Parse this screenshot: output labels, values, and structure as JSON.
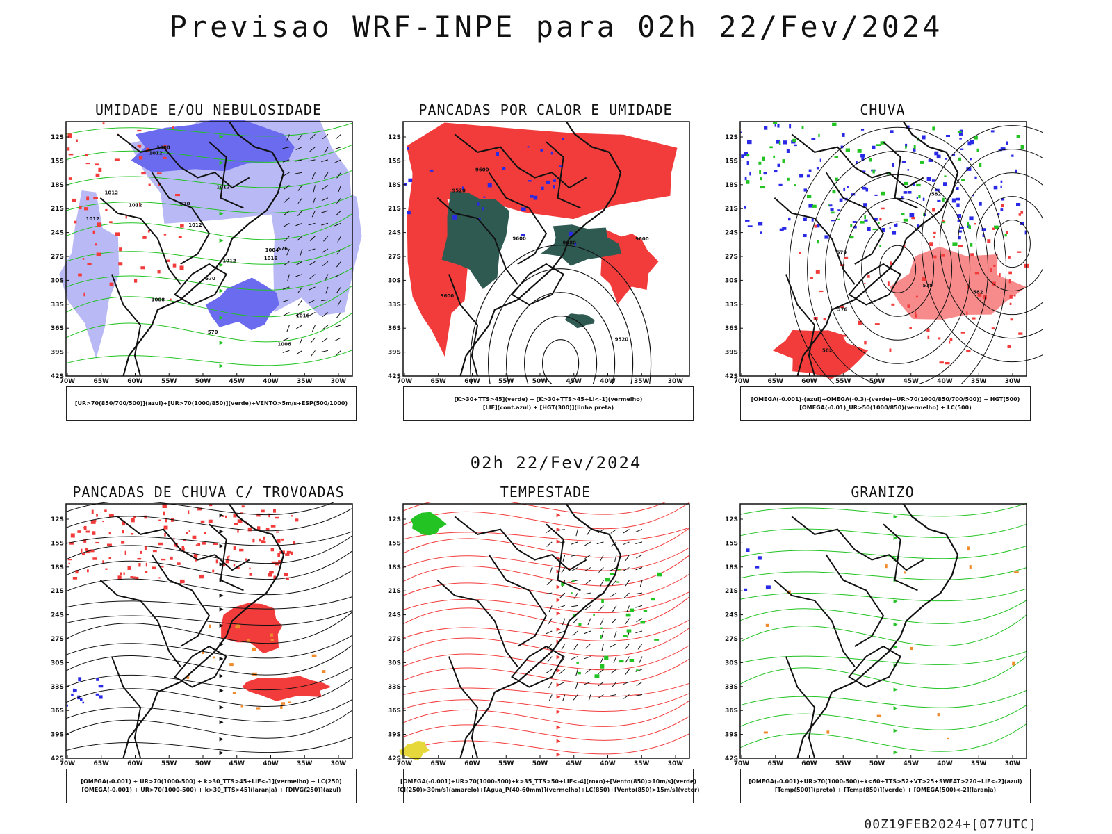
{
  "page": {
    "title": "Previsao WRF-INPE  para 02h 22/Fev/2024",
    "mid_date": "02h 22/Fev/2024",
    "footer": "00Z19FEB2024+[077UTC]"
  },
  "axes": {
    "lat_labels": [
      "12S",
      "15S",
      "18S",
      "21S",
      "24S",
      "27S",
      "30S",
      "33S",
      "36S",
      "39S",
      "42S"
    ],
    "lon_labels": [
      "70W",
      "65W",
      "60W",
      "55W",
      "50W",
      "45W",
      "40W",
      "35W",
      "30W"
    ]
  },
  "colors": {
    "humid_blue": "#6b6bf0",
    "light_blue": "#b9b9f5",
    "green": "#22c322",
    "red": "#f23c3c",
    "dark_teal": "#2f5a52",
    "orange": "#f08a2a",
    "yellow": "#e6d83a",
    "blue": "#2a2ae6",
    "purple": "#7a2aa8"
  },
  "panels": [
    {
      "id": "umidade",
      "title": "UMIDADE E/OU NEBULOSIDADE",
      "legend": [
        "[UR>70(850/700/500)](azul)+[UR>70(1000/850)](verde)+VENTO>5m/s+ESP(500/1000)"
      ],
      "contour_labels": [
        "1012",
        "1012",
        "1012",
        "1012",
        "1008",
        "1012",
        "1012",
        "1012",
        "1016",
        "1016",
        "1008",
        "1004",
        "1006",
        "576",
        "570",
        "570",
        "570"
      ]
    },
    {
      "id": "pancadas-calor",
      "title": "PANCADAS POR CALOR E UMIDADE",
      "legend": [
        "[K>30+TTS>45](verde) + [K>30+TTS>45+LI<-1](vermelho)",
        "[LIF](cont.azul) + [HGT(300)](linha preta)"
      ],
      "contour_labels": [
        "9600",
        "9600",
        "9600",
        "9520",
        "9600",
        "9520",
        "9680"
      ]
    },
    {
      "id": "chuva",
      "title": "CHUVA",
      "legend": [
        "[OMEGA(-0.001)-(azul)+OMEGA(-0.3)-(verde)+UR>70(1000/850/700/500)] + HGT(500)",
        "[OMEGA(-0.01)_UR>50(1000/850)(vermelho) + LC(500)"
      ],
      "contour_labels": [
        "582",
        "579",
        "579",
        "576",
        "582",
        "582"
      ]
    },
    {
      "id": "trovoadas",
      "title": "PANCADAS DE CHUVA C/ TROVOADAS",
      "legend": [
        "[OMEGA(-0.001) + UR>70(1000-500) + k>30_TTS>45+LIF<-1](vermelho) + LC(250)",
        "[OMEGA(-0.001) + UR>70(1000-500) + k>30_TTS>45](laranja) + [DIVG(250)](azul)"
      ],
      "contour_labels": []
    },
    {
      "id": "tempestade",
      "title": "TEMPESTADE",
      "legend": [
        "[OMEGA(-0.001)+UR>70(1000-500)+k>35_TTS>50+LIF<-4](roxo)+[Vento(850)>10m/s](verde)",
        "[CJ(250)>30m/s](amarelo)+[Agua_P(40-60mm)](vermelho)+LC(850)+[Vento(850)>15m/s](vetor)"
      ],
      "contour_labels": []
    },
    {
      "id": "granizo",
      "title": "GRANIZO",
      "legend": [
        "[OMEGA(-0.001)+UR>70(1000-500)+k<60+TTS>52+VT>25+SWEAT>220+LIF<-2](azul)",
        "[Temp(500)](preto) + [Temp(850)](verde) + [OMEGA(500)<-2](laranja)"
      ],
      "contour_labels": []
    }
  ]
}
